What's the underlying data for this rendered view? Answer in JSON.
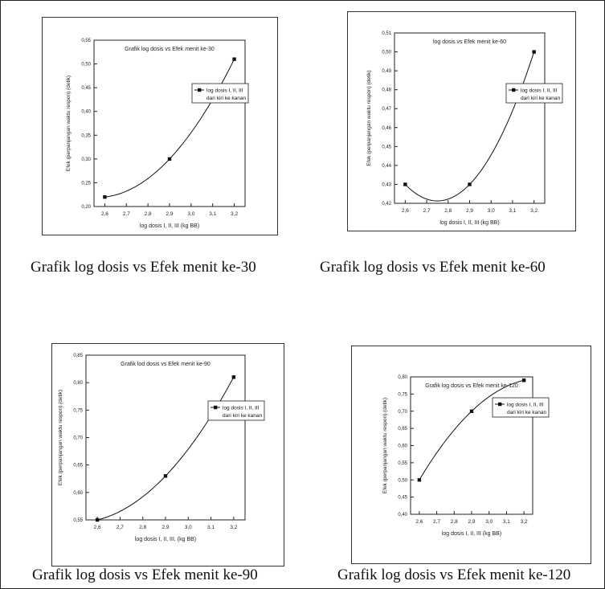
{
  "chart_data": [
    {
      "type": "line",
      "title": "Grafik log dosis vs Efek menit ke-30",
      "xlabel": "log dosis I, II, III (kg BB)",
      "ylabel": "Efek (perpanjangan waktu respon) (detik)",
      "xlim": [
        2.55,
        3.25
      ],
      "ylim": [
        0.2,
        0.55
      ],
      "xticks": [
        "2,6",
        "2,7",
        "2,8",
        "2,9",
        "3,0",
        "3,1",
        "3,2"
      ],
      "yticks": [
        "0,20",
        "0,25",
        "0,30",
        "0,35",
        "0,40",
        "0,45",
        "0,50",
        "0,55"
      ],
      "series": [
        {
          "name": "log dosis I, II, III",
          "x": [
            2.6,
            2.9,
            3.2
          ],
          "y": [
            0.22,
            0.3,
            0.51
          ]
        }
      ],
      "legend_sub": "dari kiri ke kanan",
      "legend": "right",
      "grid": false,
      "caption": "Grafik log dosis vs Efek menit ke-30"
    },
    {
      "type": "line",
      "title": "log dosis vs Efek menit ke-60",
      "xlabel": "log dosis I, II, III (kg BB)",
      "ylabel": "Efek (perpanjangan waktu respon) (detik)",
      "xlim": [
        2.55,
        3.25
      ],
      "ylim": [
        0.42,
        0.51
      ],
      "xticks": [
        "2,6",
        "2,7",
        "2,8",
        "2,9",
        "3,0",
        "3,1",
        "3,2"
      ],
      "yticks": [
        "0,42",
        "0,43",
        "0,44",
        "0,45",
        "0,46",
        "0,47",
        "0,48",
        "0,49",
        "0,50",
        "0,51"
      ],
      "series": [
        {
          "name": "log dosis I, II, III",
          "x": [
            2.6,
            2.9,
            3.2
          ],
          "y": [
            0.43,
            0.43,
            0.5
          ]
        }
      ],
      "legend_sub": "dari kiri ke kanan",
      "legend": "right",
      "grid": false,
      "caption": "Grafik log dosis vs Efek menit ke-60"
    },
    {
      "type": "line",
      "title": "Grafik lod dosis vs Efek menit ke-90",
      "xlabel": "log dosis I, II, III, (kg BB)",
      "ylabel": "Efek (perpanjangan waktu respon) (detik)",
      "xlim": [
        2.55,
        3.25
      ],
      "ylim": [
        0.55,
        0.85
      ],
      "xticks": [
        "2,6",
        "2,7",
        "2,8",
        "2,9",
        "3,0",
        "3,1",
        "3,2"
      ],
      "yticks": [
        "0,55",
        "0,60",
        "0,65",
        "0,70",
        "0,75",
        "0,80",
        "0,85"
      ],
      "series": [
        {
          "name": "log dosis I, II, III",
          "x": [
            2.6,
            2.9,
            3.2
          ],
          "y": [
            0.55,
            0.63,
            0.81
          ]
        }
      ],
      "legend_sub": "dari kiri ke kanan",
      "legend": "right",
      "grid": false,
      "caption": "Grafik log dosis vs Efek menit ke-90"
    },
    {
      "type": "line",
      "title": "Grafik log dosis vs Efek menit ke-120",
      "xlabel": "log dosis I, II, III (kg BB)",
      "ylabel": "Efek (perpanjangan waktu respon) (detik)",
      "xlim": [
        2.55,
        3.25
      ],
      "ylim": [
        0.4,
        0.8
      ],
      "xticks": [
        "2,6",
        "2,7",
        "2,8",
        "2,9",
        "3,0",
        "3,1",
        "3,2"
      ],
      "yticks": [
        "0,40",
        "0,45",
        "0,50",
        "0,55",
        "0,60",
        "0,65",
        "0,70",
        "0,75",
        "0,80"
      ],
      "series": [
        {
          "name": "log dosis I, II, III",
          "x": [
            2.6,
            2.9,
            3.2
          ],
          "y": [
            0.5,
            0.7,
            0.79
          ]
        }
      ],
      "legend_sub": "dari kiri ke kanan",
      "legend": "right",
      "grid": false,
      "caption": "Grafik log dosis vs Efek menit ke-120"
    }
  ]
}
